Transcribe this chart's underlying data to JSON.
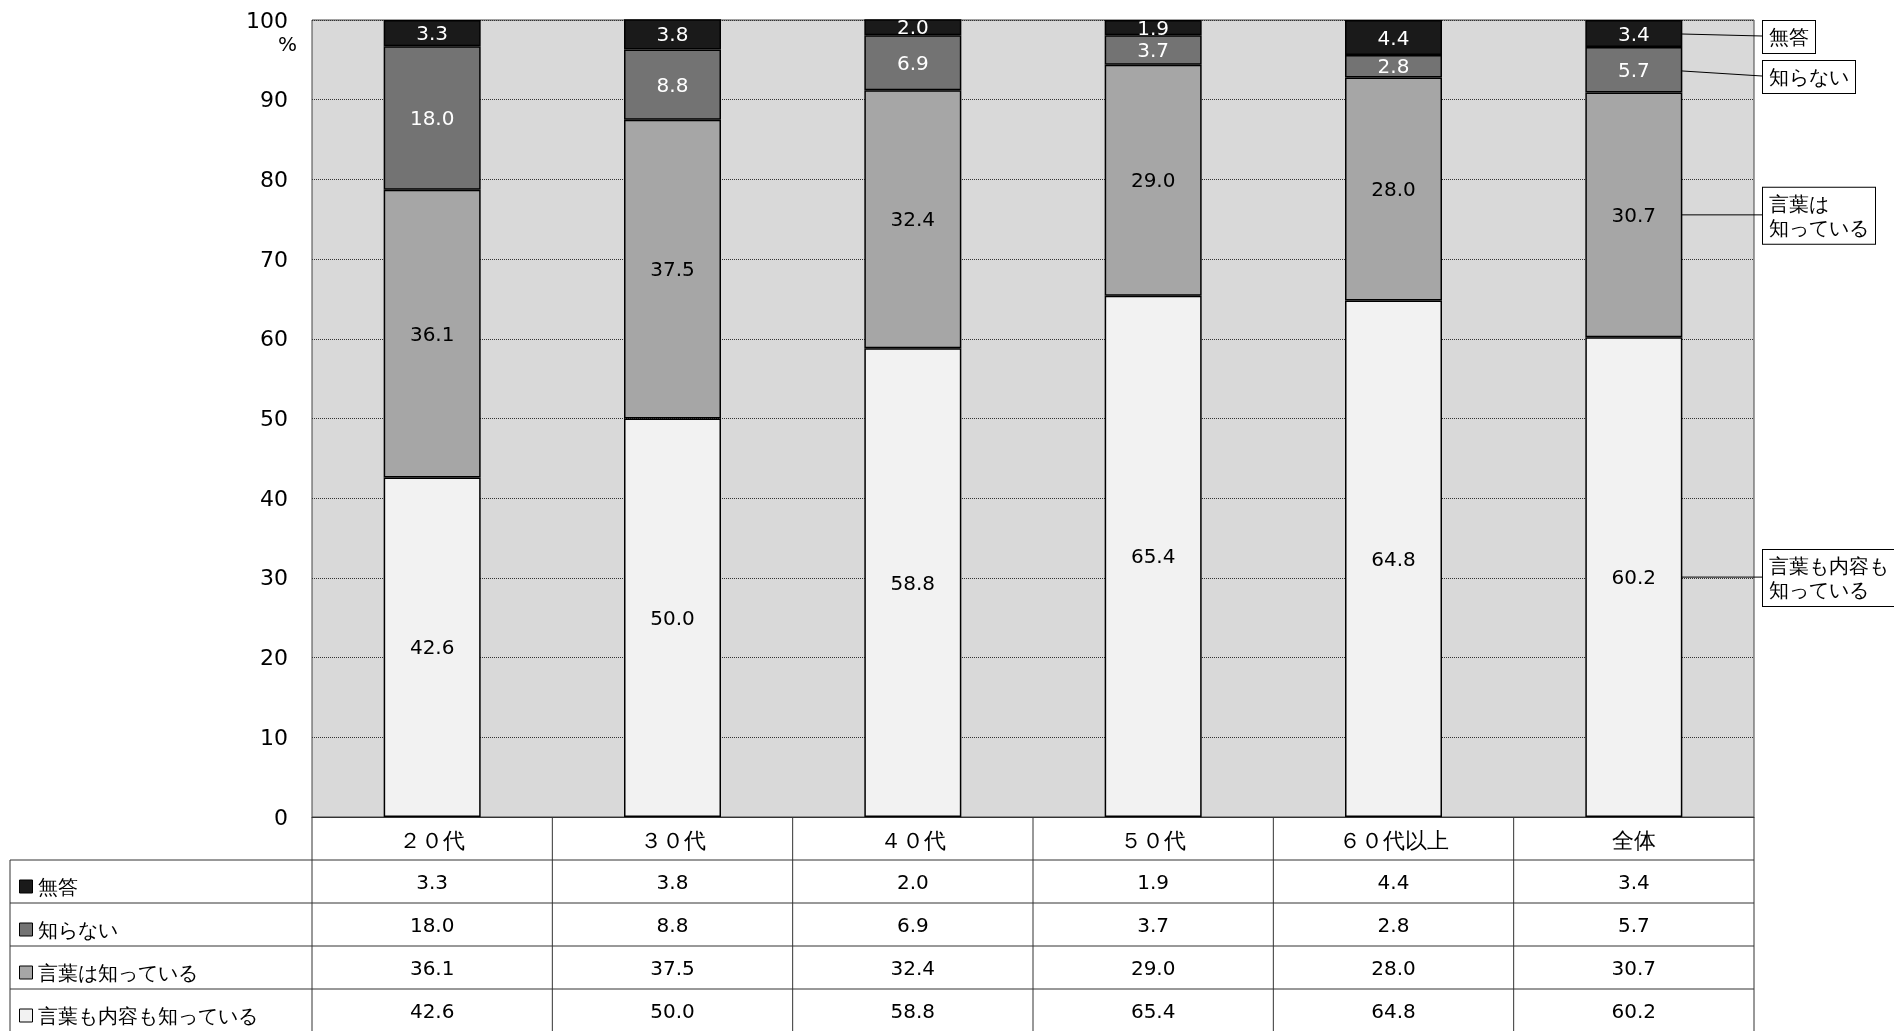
{
  "chart_data": {
    "type": "bar",
    "stacked": true,
    "ylabel": "%",
    "categories": [
      "２０代",
      "３０代",
      "４０代",
      "５０代",
      "６０代以上",
      "全体"
    ],
    "series": [
      {
        "name": "言葉も内容も知っている",
        "color": "#f2f2f2",
        "values": [
          42.6,
          50.0,
          58.8,
          65.4,
          64.8,
          60.2
        ],
        "value_labels": [
          "42.6",
          "50.0",
          "58.8",
          "65.4",
          "64.8",
          "60.2"
        ]
      },
      {
        "name": "言葉は知っている",
        "color": "#a6a6a6",
        "values": [
          36.1,
          37.5,
          32.4,
          29.0,
          28.0,
          30.7
        ],
        "value_labels": [
          "36.1",
          "37.5",
          "32.4",
          "29.0",
          "28.0",
          "30.7"
        ]
      },
      {
        "name": "知らない",
        "color": "#737373",
        "values": [
          18.0,
          8.8,
          6.9,
          3.7,
          2.8,
          5.7
        ],
        "value_labels": [
          "18.0",
          "8.8",
          "6.9",
          "3.7",
          "2.8",
          "5.7"
        ]
      },
      {
        "name": "無答",
        "color": "#1a1a1a",
        "values": [
          3.3,
          3.8,
          2.0,
          1.9,
          4.4,
          3.4
        ],
        "value_labels": [
          "3.3",
          "3.8",
          "2.0",
          "1.9",
          "4.4",
          "3.4"
        ]
      }
    ],
    "annotations": [
      "無答",
      "知らない",
      "言葉は知っている",
      "言葉も内容も知っている"
    ],
    "ylim": [
      0,
      100
    ],
    "yticks": [
      0,
      10,
      20,
      30,
      40,
      50,
      60,
      70,
      80,
      90,
      100
    ],
    "grid": "y",
    "legend": "bottom"
  }
}
